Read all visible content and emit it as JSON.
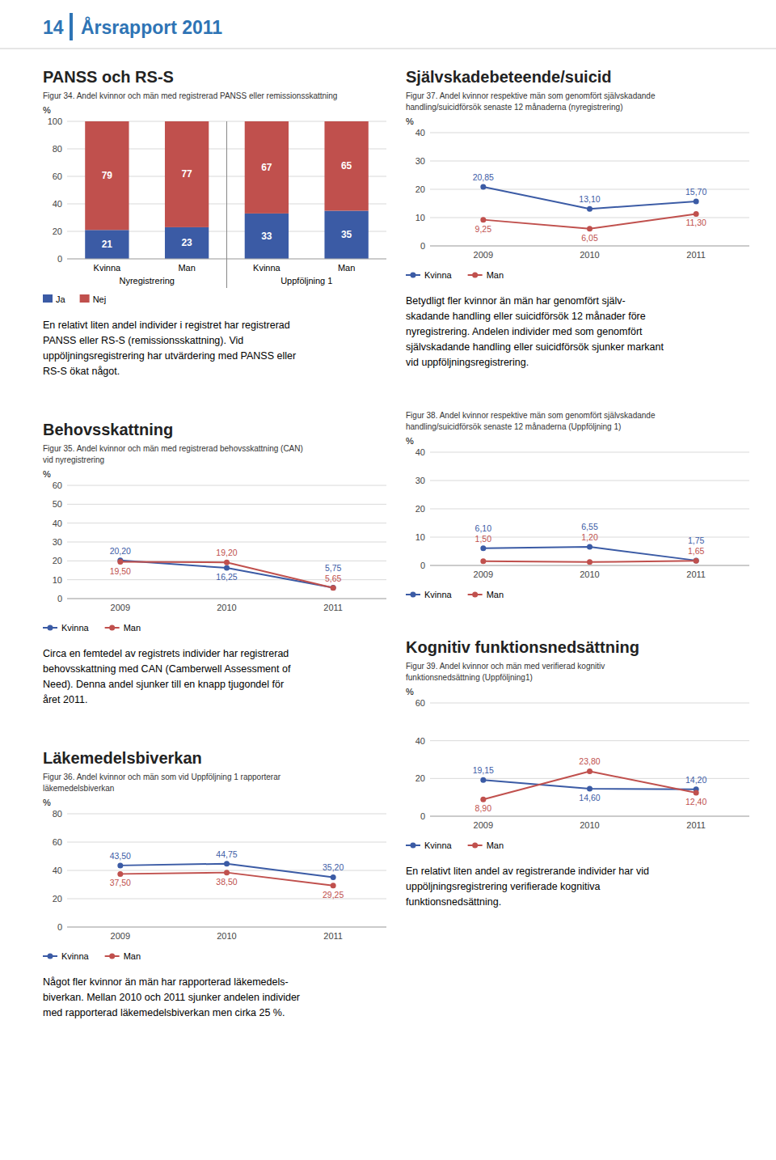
{
  "header": {
    "page": "14",
    "title": "Årsrapport 2011"
  },
  "chart_data": [
    {
      "type": "bar",
      "title": "PANSS och RS-S",
      "subtitle": "Figur 34. Andel kvinnor och män med registrerad PANSS eller remissionsskattning",
      "categories": [
        "Kvinna",
        "Man",
        "Kvinna",
        "Man"
      ],
      "category_groups": [
        "Nyregistrering",
        "Uppföljning 1"
      ],
      "series": [
        {
          "name": "Ja",
          "color": "#3B5BA5",
          "values": [
            21,
            23,
            33,
            35
          ]
        },
        {
          "name": "Nej",
          "color": "#C0504D",
          "values": [
            79,
            77,
            67,
            65
          ]
        }
      ],
      "stacked": true,
      "data_labels": true,
      "ylabel": "%",
      "ylim": [
        0,
        100
      ],
      "yticks": [
        0,
        20,
        40,
        60,
        80,
        100
      ],
      "grid": true,
      "legend": "bottom",
      "annotations": [
        "En relativt liten andel individer i registret har registrerad\nPANSS eller RS-S (remissionsskattning). Vid\nuppöljningsregistrering har utvärdering med PANSS eller\nRS-S ökat något."
      ]
    },
    {
      "type": "line",
      "title": "Behovsskattning",
      "subtitle": "Figur 35. Andel kvinnor och män med registrerad behovsskattning (CAN)\nvid nyregistrering",
      "x": [
        2009,
        2010,
        2011
      ],
      "xlim": [
        2008.5,
        2011.5
      ],
      "xticks": [
        2009,
        2010,
        2011
      ],
      "ylim": [
        0,
        60
      ],
      "yticks": [
        0,
        10,
        20,
        30,
        40,
        50,
        60
      ],
      "ylabel": "%",
      "grid": true,
      "legend": "bottom",
      "data_labels": true,
      "marker": "circle",
      "series": [
        {
          "name": "Kvinna",
          "color": "#3B5BA5",
          "values": [
            20.2,
            16.25,
            5.75
          ],
          "value_labels": [
            "20,20",
            "16,25",
            "5,75"
          ]
        },
        {
          "name": "Man",
          "color": "#C0504D",
          "values": [
            19.5,
            19.2,
            5.65
          ],
          "value_labels": [
            "19,50",
            "19,20",
            "5,65"
          ]
        }
      ],
      "annotations": [
        "Circa en femtedel av registrets individer har registrerad\nbehovsskattning med CAN (Camberwell Assessment of\nNeed). Denna andel sjunker till en knapp tjugondel för\nåret 2011."
      ]
    },
    {
      "type": "line",
      "title": "Läkemedelsbiverkan",
      "subtitle": "Figur 36. Andel kvinnor och män som vid Uppföljning 1 rapporterar\nläkemedelsbiverkan",
      "x": [
        2009,
        2010,
        2011
      ],
      "xlim": [
        2008.5,
        2011.5
      ],
      "xticks": [
        2009,
        2010,
        2011
      ],
      "ylim": [
        0,
        80
      ],
      "yticks": [
        0,
        20,
        40,
        60,
        80
      ],
      "ylabel": "%",
      "grid": true,
      "legend": "bottom",
      "data_labels": true,
      "marker": "circle",
      "series": [
        {
          "name": "Kvinna",
          "color": "#3B5BA5",
          "values": [
            43.5,
            44.75,
            35.2
          ],
          "value_labels": [
            "43,50",
            "44,75",
            "35,20"
          ]
        },
        {
          "name": "Man",
          "color": "#C0504D",
          "values": [
            37.5,
            38.5,
            29.25
          ],
          "value_labels": [
            "37,50",
            "38,50",
            "29,25"
          ]
        }
      ],
      "annotations": [
        "Något fler kvinnor än män har rapporterad läkemedels-\nbiverkan. Mellan 2010 och 2011 sjunker andelen individer\nmed rapporterad läkemedelsbiverkan men cirka 25 %."
      ]
    },
    {
      "type": "line",
      "title": "Självskadebeteende/suicid",
      "subtitle": "Figur 37. Andel kvinnor respektive män som genomfört självskadande\nhandling/suicidförsök senaste 12 månaderna (nyregistrering)",
      "x": [
        2009,
        2010,
        2011
      ],
      "xlim": [
        2008.5,
        2011.5
      ],
      "xticks": [
        2009,
        2010,
        2011
      ],
      "ylim": [
        0,
        40
      ],
      "yticks": [
        0,
        10,
        20,
        30,
        40
      ],
      "ylabel": "%",
      "grid": true,
      "legend": "bottom",
      "data_labels": true,
      "marker": "circle",
      "series": [
        {
          "name": "Kvinna",
          "color": "#3B5BA5",
          "values": [
            20.85,
            13.1,
            15.7
          ],
          "value_labels": [
            "20,85",
            "13,10",
            "15,70"
          ]
        },
        {
          "name": "Man",
          "color": "#C0504D",
          "values": [
            9.25,
            6.05,
            11.3
          ],
          "value_labels": [
            "9,25",
            "6,05",
            "11,30"
          ]
        }
      ],
      "annotations": [
        "Betydligt fler kvinnor än män har genomfört själv-\nskadande handling eller suicidförsök 12 månader före\nnyregistrering. Andelen individer med som genomfört\nsjälvskadande handling eller suicidförsök sjunker markant\nvid uppföljningsregistrering."
      ]
    },
    {
      "type": "line",
      "subtitle": "Figur 38. Andel kvinnor respektive män som genomfört självskadande\nhandling/suicidförsök senaste 12 månaderna (Uppföljning 1)",
      "x": [
        2009,
        2010,
        2011
      ],
      "xlim": [
        2008.5,
        2011.5
      ],
      "xticks": [
        2009,
        2010,
        2011
      ],
      "ylim": [
        0,
        40
      ],
      "yticks": [
        0,
        10,
        20,
        30,
        40
      ],
      "ylabel": "%",
      "grid": true,
      "legend": "bottom",
      "data_labels": true,
      "marker": "circle",
      "series": [
        {
          "name": "Kvinna",
          "color": "#3B5BA5",
          "values": [
            6.1,
            6.55,
            1.75
          ],
          "value_labels": [
            "6,10",
            "6,55",
            "1,75"
          ]
        },
        {
          "name": "Man",
          "color": "#C0504D",
          "values": [
            1.5,
            1.2,
            1.65
          ],
          "value_labels": [
            "1,50",
            "1,20",
            "1,65"
          ]
        }
      ]
    },
    {
      "type": "line",
      "title": "Kognitiv funktionsnedsättning",
      "subtitle": "Figur 39. Andel kvinnor och män med verifierad kognitiv\nfunktionsnedsättning (Uppföljning1)",
      "x": [
        2009,
        2010,
        2011
      ],
      "xlim": [
        2008.5,
        2011.5
      ],
      "xticks": [
        2009,
        2010,
        2011
      ],
      "ylim": [
        0,
        60
      ],
      "yticks": [
        0,
        20,
        40,
        60
      ],
      "ylabel": "%",
      "grid": true,
      "legend": "bottom",
      "data_labels": true,
      "marker": "circle",
      "series": [
        {
          "name": "Kvinna",
          "color": "#3B5BA5",
          "values": [
            19.15,
            14.6,
            14.2
          ],
          "value_labels": [
            "19,15",
            "14,60",
            "14,20"
          ]
        },
        {
          "name": "Man",
          "color": "#C0504D",
          "values": [
            8.9,
            23.8,
            12.4
          ],
          "value_labels": [
            "8,90",
            "23,80",
            "12,40"
          ]
        }
      ],
      "annotations": [
        "En relativt liten andel av registrerande individer har vid\nuppöljningsregistrering verifierade kognitiva\nfunktionsnedsättning."
      ]
    }
  ]
}
